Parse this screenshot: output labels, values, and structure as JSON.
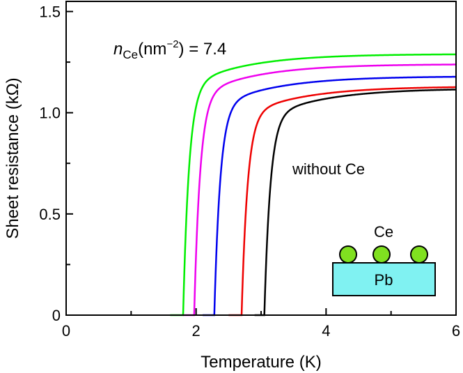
{
  "chart_data": {
    "type": "line",
    "xlabel": "Temperature (K)",
    "ylabel": "Sheet resistance (kΩ)",
    "xlim": [
      0,
      6
    ],
    "ylim": [
      0,
      1.55
    ],
    "x_ticks": [
      0,
      2,
      4,
      6
    ],
    "x_tick_labels": [
      "0",
      "2",
      "4",
      "6"
    ],
    "y_ticks": [
      0,
      0.5,
      1.0,
      1.5
    ],
    "y_tick_labels": [
      "0",
      "0.5",
      "1.0",
      "1.5"
    ],
    "grid": false,
    "annotations": {
      "n_symbol": "n",
      "n_subscript": "Ce",
      "n_units_open": "(nm",
      "n_units_exp": "−2",
      "n_units_close": ")",
      "n_value": " = 7.4",
      "without_label": "without Ce"
    },
    "inset": {
      "adatom_label": "Ce",
      "substrate_label": "Pb",
      "adatom_color": "#80e020",
      "substrate_color": "#80f2f2"
    },
    "series": [
      {
        "color": "#00ee00",
        "tc": 1.8,
        "rn": 1.29,
        "x": [
          1.6,
          1.72,
          1.8,
          1.9,
          2.0,
          2.1,
          2.3,
          2.6,
          3.0,
          4.0,
          5.0,
          6.0
        ],
        "y": [
          0.0,
          0.0,
          0.02,
          0.75,
          1.05,
          1.16,
          1.23,
          1.26,
          1.275,
          1.285,
          1.288,
          1.29
        ]
      },
      {
        "color": "#ee00ee",
        "tc": 1.97,
        "rn": 1.24,
        "x": [
          1.8,
          1.92,
          1.97,
          2.05,
          2.15,
          2.3,
          2.5,
          2.8,
          3.2,
          4.0,
          5.0,
          6.0
        ],
        "y": [
          0.0,
          0.0,
          0.02,
          0.72,
          0.98,
          1.1,
          1.17,
          1.205,
          1.222,
          1.232,
          1.237,
          1.24
        ]
      },
      {
        "color": "#0000ee",
        "tc": 2.28,
        "rn": 1.18,
        "x": [
          2.1,
          2.23,
          2.28,
          2.36,
          2.46,
          2.6,
          2.8,
          3.1,
          3.5,
          4.2,
          5.0,
          6.0
        ],
        "y": [
          0.0,
          0.0,
          0.02,
          0.65,
          0.88,
          1.0,
          1.07,
          1.115,
          1.14,
          1.16,
          1.17,
          1.18
        ]
      },
      {
        "color": "#ee0000",
        "tc": 2.7,
        "rn": 1.13,
        "x": [
          2.5,
          2.65,
          2.7,
          2.78,
          2.88,
          3.0,
          3.2,
          3.5,
          3.9,
          4.5,
          5.2,
          6.0
        ],
        "y": [
          0.0,
          0.0,
          0.02,
          0.58,
          0.8,
          0.92,
          1.0,
          1.055,
          1.085,
          1.105,
          1.12,
          1.13
        ]
      },
      {
        "color": "#000000",
        "tc": 3.05,
        "rn": 1.12,
        "x": [
          2.9,
          3.0,
          3.05,
          3.12,
          3.22,
          3.35,
          3.55,
          3.85,
          4.25,
          4.8,
          5.4,
          6.0
        ],
        "y": [
          0.0,
          0.0,
          0.02,
          0.4,
          0.65,
          0.8,
          0.92,
          1.0,
          1.05,
          1.085,
          1.105,
          1.12
        ]
      }
    ]
  }
}
